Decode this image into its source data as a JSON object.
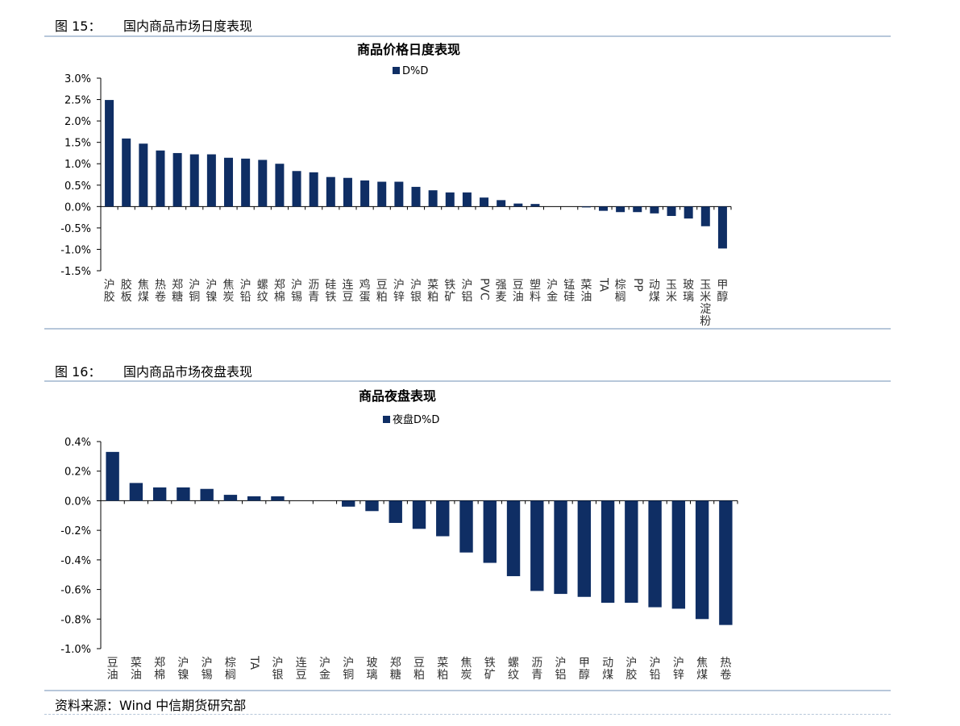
{
  "figures": [
    {
      "number": "图 15：",
      "title": "国内商品市场日度表现",
      "chart_data": {
        "type": "bar",
        "title": "商品价格日度表现",
        "legend": "D%D",
        "legend_position": "top",
        "ylim": [
          -1.5,
          3.0
        ],
        "yticks": [
          "3.0%",
          "2.5%",
          "2.0%",
          "1.5%",
          "1.0%",
          "0.5%",
          "0.0%",
          "-0.5%",
          "-1.0%",
          "-1.5%"
        ],
        "ytick_values": [
          3.0,
          2.5,
          2.0,
          1.5,
          1.0,
          0.5,
          0.0,
          -0.5,
          -1.0,
          -1.5
        ],
        "grid": false,
        "color": "#0f2e64",
        "categories": [
          "沪胶",
          "胶板",
          "焦煤",
          "热卷",
          "郑糖",
          "沪铜",
          "沪镍",
          "焦炭",
          "沪铅",
          "螺纹",
          "郑棉",
          "沪锡",
          "沥青",
          "硅铁",
          "连豆",
          "鸡蛋",
          "豆粕",
          "沪锌",
          "沪银",
          "菜粕",
          "铁矿",
          "沪铝",
          "PVC",
          "强麦",
          "豆油",
          "塑料",
          "沪金",
          "锰硅",
          "菜油",
          "TA",
          "棕榈",
          "PP",
          "动煤",
          "玉米",
          "玻璃",
          "玉米淀粉",
          "甲醇"
        ],
        "values": [
          2.49,
          1.59,
          1.47,
          1.31,
          1.25,
          1.22,
          1.22,
          1.14,
          1.12,
          1.09,
          1.0,
          0.83,
          0.8,
          0.69,
          0.67,
          0.61,
          0.58,
          0.58,
          0.46,
          0.38,
          0.33,
          0.33,
          0.21,
          0.15,
          0.07,
          0.06,
          0.0,
          0.0,
          -0.02,
          -0.1,
          -0.13,
          -0.13,
          -0.16,
          -0.22,
          -0.28,
          -0.46,
          -0.98
        ]
      }
    },
    {
      "number": "图 16：",
      "title": "国内商品市场夜盘表现",
      "chart_data": {
        "type": "bar",
        "title": "商品夜盘表现",
        "legend": "夜盘D%D",
        "legend_position": "top",
        "ylim": [
          -1.0,
          0.4
        ],
        "yticks": [
          "0.4%",
          "0.2%",
          "0.0%",
          "-0.2%",
          "-0.4%",
          "-0.6%",
          "-0.8%",
          "-1.0%"
        ],
        "ytick_values": [
          0.4,
          0.2,
          0.0,
          -0.2,
          -0.4,
          -0.6,
          -0.8,
          -1.0
        ],
        "grid": false,
        "color": "#0f2e64",
        "categories": [
          "豆油",
          "菜油",
          "郑棉",
          "沪镍",
          "沪锡",
          "棕榈",
          "TA",
          "沪银",
          "连豆",
          "沪金",
          "沪铜",
          "玻璃",
          "郑糖",
          "豆粕",
          "菜粕",
          "焦炭",
          "铁矿",
          "螺纹",
          "沥青",
          "沪铝",
          "甲醇",
          "动煤",
          "沪胶",
          "沪铅",
          "沪锌",
          "焦煤",
          "热卷"
        ],
        "values": [
          0.33,
          0.12,
          0.09,
          0.09,
          0.08,
          0.04,
          0.03,
          0.03,
          0.0,
          0.0,
          -0.04,
          -0.07,
          -0.15,
          -0.19,
          -0.24,
          -0.35,
          -0.42,
          -0.51,
          -0.61,
          -0.63,
          -0.65,
          -0.69,
          -0.69,
          -0.72,
          -0.73,
          -0.8,
          -0.84
        ]
      }
    }
  ],
  "source": "资料来源：Wind  中信期货研究部"
}
